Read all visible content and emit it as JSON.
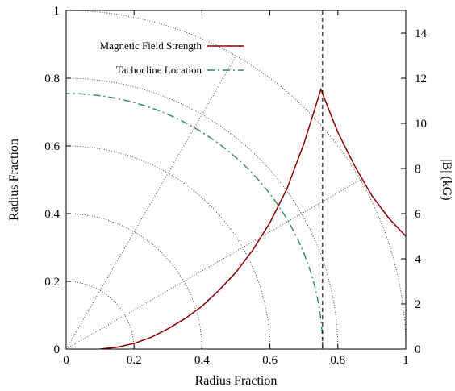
{
  "chart_data": {
    "type": "line",
    "xlabel": "Radius Fraction",
    "ylabel_left": "Radius Fraction",
    "ylabel_right": "|B| (kG)",
    "xlim": [
      0,
      1
    ],
    "ylim_left": [
      0,
      1
    ],
    "ylim_right": [
      0,
      15
    ],
    "x_ticks": [
      "0",
      "0.2",
      "0.4",
      "0.6",
      "0.8",
      "1"
    ],
    "y_left_ticks": [
      "0",
      "0.2",
      "0.4",
      "0.6",
      "0.8",
      "1"
    ],
    "y_right_ticks": [
      "0",
      "2",
      "4",
      "6",
      "8",
      "10",
      "12",
      "14"
    ],
    "grid": "polar dotted arcs at r = 0.2, 0.4, 0.6, 0.8, 1 and radial lines at 30°, 60°",
    "legend_position": "top-left",
    "series": [
      {
        "name": "Magnetic Field Strength",
        "axis": "right",
        "color": "#8b0000",
        "style": "solid",
        "x": [
          0.1,
          0.15,
          0.2,
          0.25,
          0.3,
          0.35,
          0.4,
          0.45,
          0.5,
          0.55,
          0.6,
          0.65,
          0.7,
          0.75,
          0.8,
          0.85,
          0.9,
          0.95,
          1.0
        ],
        "y": [
          0.0,
          0.08,
          0.25,
          0.52,
          0.9,
          1.35,
          1.9,
          2.6,
          3.4,
          4.4,
          5.6,
          7.1,
          9.1,
          11.5,
          9.6,
          8.1,
          6.8,
          5.8,
          5.0
        ]
      },
      {
        "name": "Tachocline Location",
        "axis": "left",
        "color": "#2e8b57",
        "style": "dash-dot",
        "shape": "quarter-circle",
        "radius": 0.755
      }
    ],
    "reference_line": {
      "x": 0.755,
      "style": "dashed",
      "color": "#000000"
    }
  }
}
